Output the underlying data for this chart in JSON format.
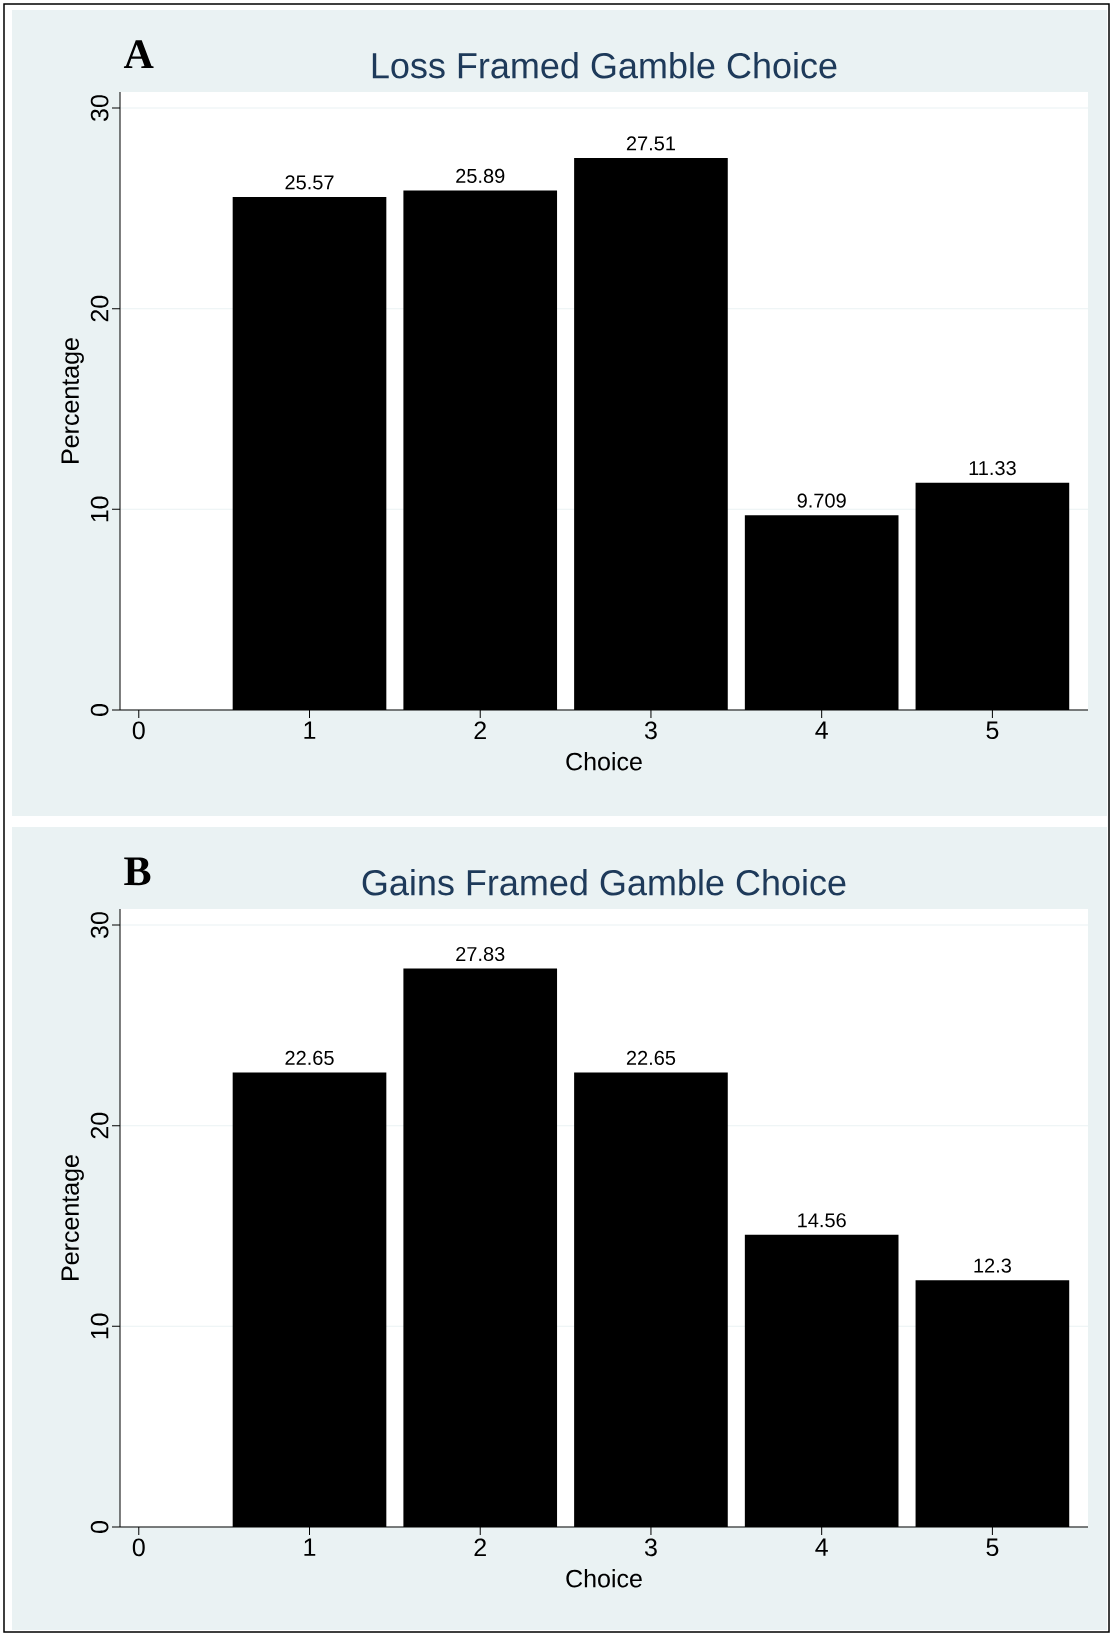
{
  "chart_data": [
    {
      "type": "bar",
      "title": "Loss Framed Gamble Choice",
      "xlabel": "Choice",
      "ylabel": "Percentage",
      "annotations": [
        "A"
      ],
      "x": [
        1,
        2,
        3,
        4,
        5
      ],
      "values": [
        25.57,
        25.89,
        27.51,
        9.709,
        11.33
      ],
      "color": "#000000",
      "xlim": [
        -0.11,
        5.56
      ],
      "ylim": [
        0,
        30.8
      ],
      "xticks": [
        0,
        1,
        2,
        3,
        4,
        5
      ],
      "yticks": [
        0,
        10,
        20,
        30
      ],
      "grid": "y",
      "data_labels": true
    },
    {
      "type": "bar",
      "title": "Gains Framed Gamble Choice",
      "xlabel": "Choice",
      "ylabel": "Percentage",
      "annotations": [
        "B"
      ],
      "x": [
        1,
        2,
        3,
        4,
        5
      ],
      "values": [
        22.65,
        27.83,
        22.65,
        14.56,
        12.3
      ],
      "color": "#000000",
      "xlim": [
        -0.11,
        5.56
      ],
      "ylim": [
        0,
        30.8
      ],
      "xticks": [
        0,
        1,
        2,
        3,
        4,
        5
      ],
      "yticks": [
        0,
        10,
        20,
        30
      ],
      "grid": "y",
      "data_labels": true
    }
  ]
}
